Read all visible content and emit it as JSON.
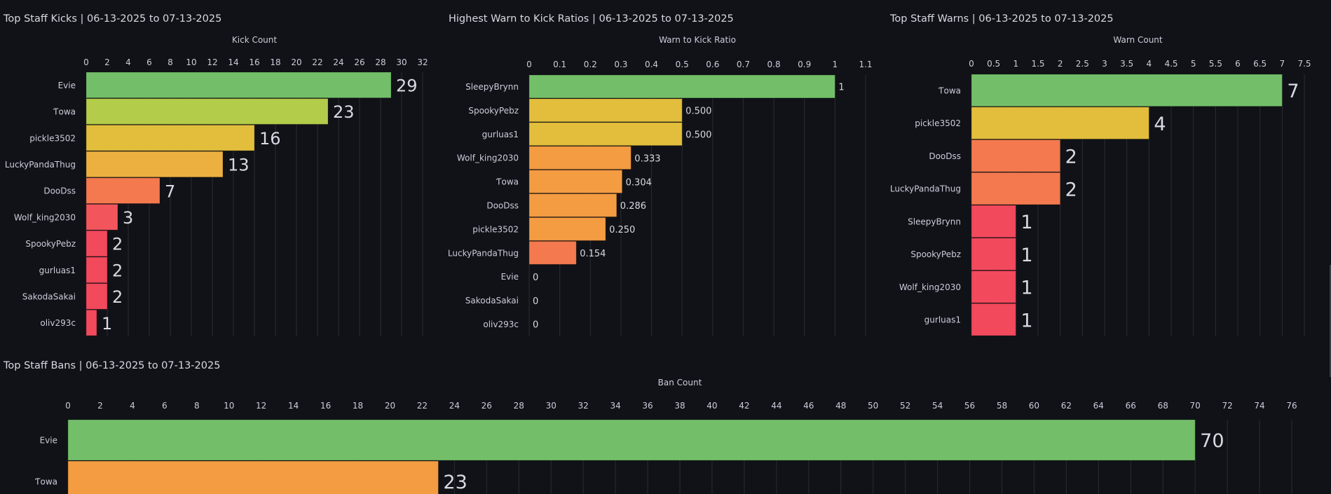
{
  "colors": {
    "green": "#73bf69",
    "lime": "#b3cc4a",
    "yellow": "#e2be3c",
    "amber": "#ecb040",
    "orange": "#f49c42",
    "orange_red": "#f4794f",
    "red": "#f2495c",
    "red_light": "#f2565c",
    "grid": "#2a2c31",
    "text": "#ccccdc"
  },
  "panels": {
    "kicks": {
      "title": "Top Staff Kicks | 06-13-2025 to 07-13-2025"
    },
    "ratios": {
      "title": "Highest Warn to Kick Ratios | 06-13-2025 to 07-13-2025"
    },
    "warns": {
      "title": "Top Staff Warns | 06-13-2025 to 07-13-2025"
    },
    "bans": {
      "title": "Top Staff Bans | 06-13-2025 to 07-13-2025"
    }
  },
  "chart_data": [
    {
      "id": "kicks",
      "type": "bar",
      "orientation": "horizontal",
      "title": "Top Staff Kicks | 06-13-2025 to 07-13-2025",
      "xlabel": "Kick Count",
      "xlim": [
        0,
        32
      ],
      "xticks": [
        0,
        2,
        4,
        6,
        8,
        10,
        12,
        14,
        16,
        18,
        20,
        22,
        24,
        26,
        28,
        30,
        32
      ],
      "categories": [
        "Evie",
        "Ƭowa",
        "pickle3502",
        "LuckyPandaThug",
        "DooDss",
        "Wolf_king2030",
        "SpookyPebz",
        "gurluas1",
        "SakodaSakai",
        "oliv293c"
      ],
      "values": [
        29,
        23,
        16,
        13,
        7,
        3,
        2,
        2,
        2,
        1
      ],
      "value_labels": [
        "29",
        "23",
        "16",
        "13",
        "7",
        "3",
        "2",
        "2",
        "2",
        "1"
      ],
      "bar_colors": [
        "green",
        "lime",
        "yellow",
        "amber",
        "orange_red",
        "red_light",
        "red",
        "red",
        "red",
        "red"
      ]
    },
    {
      "id": "ratios",
      "type": "bar",
      "orientation": "horizontal",
      "title": "Highest Warn to Kick Ratios | 06-13-2025 to 07-13-2025",
      "xlabel": "Warn to Kick Ratio",
      "xlim": [
        0,
        1.1
      ],
      "xticks": [
        0,
        0.1,
        0.2,
        0.3,
        0.4,
        0.5,
        0.6,
        0.7,
        0.8,
        0.9,
        1,
        1.1
      ],
      "xtick_labels": [
        "0",
        "0.1",
        "0.2",
        "0.3",
        "0.4",
        "0.5",
        "0.6",
        "0.7",
        "0.8",
        "0.9",
        "1",
        "1.1"
      ],
      "categories": [
        "SleepyBrynn",
        "SpookyPebz",
        "gurluas1",
        "Wolf_king2030",
        "Ƭowa",
        "DooDss",
        "pickle3502",
        "LuckyPandaThug",
        "Evie",
        "SakodaSakai",
        "oliv293c"
      ],
      "values": [
        1,
        0.5,
        0.5,
        0.333,
        0.304,
        0.286,
        0.25,
        0.154,
        0,
        0,
        0
      ],
      "value_labels": [
        "1",
        "0.500",
        "0.500",
        "0.333",
        "0.304",
        "0.286",
        "0.250",
        "0.154",
        "0",
        "0",
        "0"
      ],
      "bar_colors": [
        "green",
        "yellow",
        "yellow",
        "orange",
        "orange",
        "orange",
        "orange",
        "orange_red",
        "red",
        "red",
        "red"
      ]
    },
    {
      "id": "warns",
      "type": "bar",
      "orientation": "horizontal",
      "title": "Top Staff Warns | 06-13-2025 to 07-13-2025",
      "xlabel": "Warn Count",
      "xlim": [
        0,
        7.5
      ],
      "xticks": [
        0,
        0.5,
        1,
        1.5,
        2,
        2.5,
        3,
        3.5,
        4,
        4.5,
        5,
        5.5,
        6,
        6.5,
        7,
        7.5
      ],
      "xtick_labels": [
        "0",
        "0.5",
        "1",
        "1.5",
        "2",
        "2.5",
        "3",
        "3.5",
        "4",
        "4.5",
        "5",
        "5.5",
        "6",
        "6.5",
        "7",
        "7.5"
      ],
      "categories": [
        "Ƭowa",
        "pickle3502",
        "DooDss",
        "LuckyPandaThug",
        "SleepyBrynn",
        "SpookyPebz",
        "Wolf_king2030",
        "gurluas1"
      ],
      "values": [
        7,
        4,
        2,
        2,
        1,
        1,
        1,
        1
      ],
      "value_labels": [
        "7",
        "4",
        "2",
        "2",
        "1",
        "1",
        "1",
        "1"
      ],
      "bar_colors": [
        "green",
        "yellow",
        "orange_red",
        "orange_red",
        "red",
        "red",
        "red",
        "red"
      ]
    },
    {
      "id": "bans",
      "type": "bar",
      "orientation": "horizontal",
      "title": "Top Staff Bans | 06-13-2025 to 07-13-2025",
      "xlabel": "Ban Count",
      "xlim": [
        0,
        76
      ],
      "xticks": [
        0,
        2,
        4,
        6,
        8,
        10,
        12,
        14,
        16,
        18,
        20,
        22,
        24,
        26,
        28,
        30,
        32,
        34,
        36,
        38,
        40,
        42,
        44,
        46,
        48,
        50,
        52,
        54,
        56,
        58,
        60,
        62,
        64,
        66,
        68,
        70,
        72,
        74,
        76
      ],
      "categories": [
        "Evie",
        "Ƭowa"
      ],
      "values": [
        70,
        23
      ],
      "value_labels": [
        "70",
        "23"
      ],
      "bar_colors": [
        "green",
        "orange"
      ]
    }
  ]
}
